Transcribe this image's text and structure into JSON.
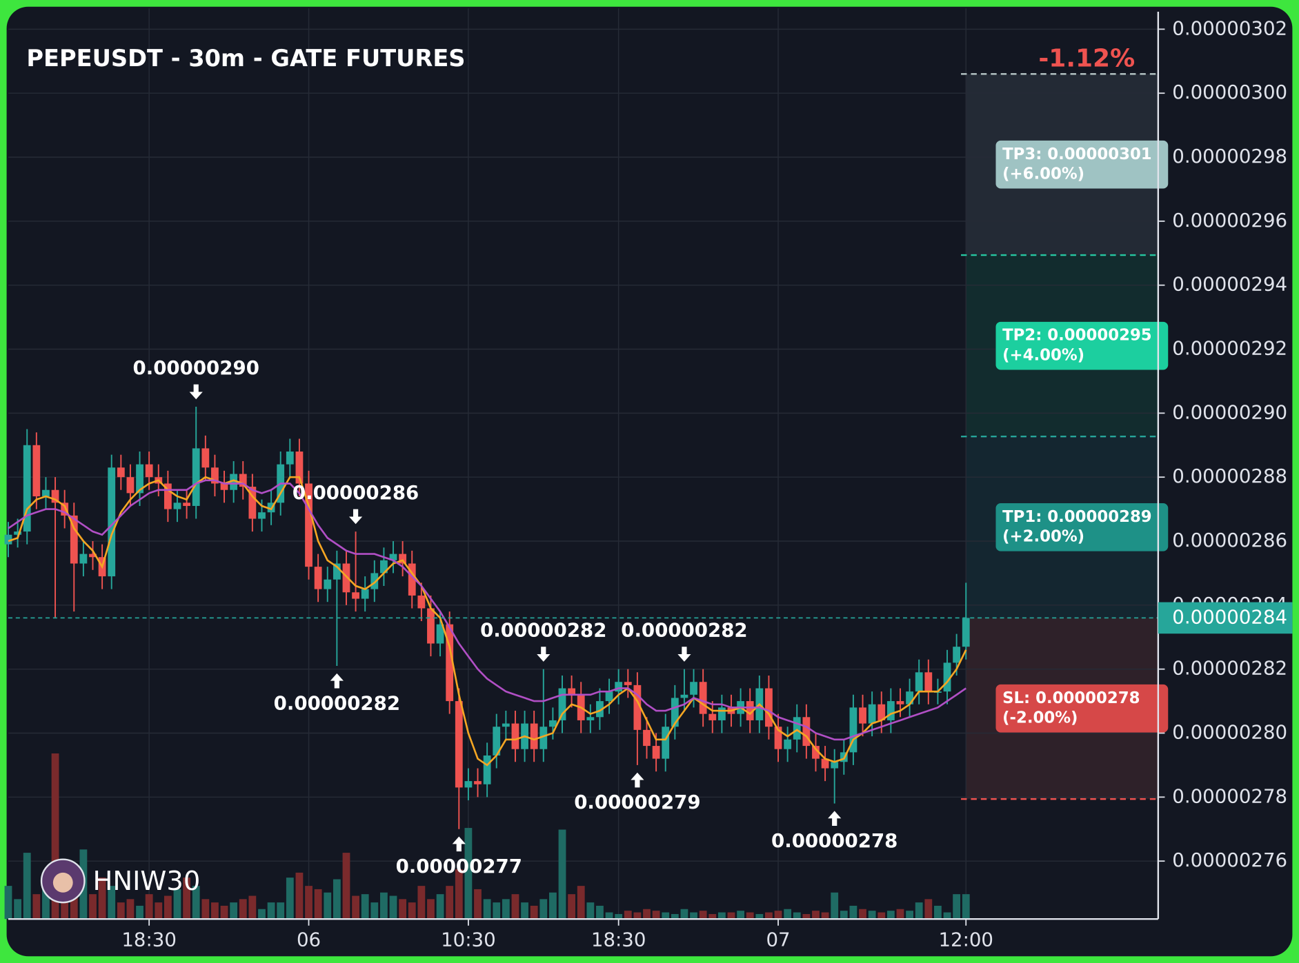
{
  "chart_data": {
    "type": "candlestick",
    "title": "PEPEUSDT - 30m - GATE FUTURES",
    "change": "-1.12%",
    "watermark": "HNIW30",
    "up_color": "#26a69a",
    "down_color": "#ef5350",
    "grid": true,
    "categories": [
      null,
      null,
      null,
      null,
      null,
      null,
      null,
      null,
      null,
      null,
      null,
      null,
      null,
      null,
      null,
      "18:30",
      null,
      null,
      null,
      null,
      null,
      null,
      null,
      null,
      null,
      null,
      null,
      null,
      null,
      null,
      null,
      null,
      "06",
      null,
      null,
      null,
      null,
      null,
      null,
      null,
      null,
      null,
      null,
      null,
      null,
      null,
      null,
      null,
      null,
      "10:30",
      null,
      null,
      null,
      null,
      null,
      null,
      null,
      null,
      null,
      null,
      null,
      null,
      null,
      null,
      null,
      "18:30",
      null,
      null,
      null,
      null,
      null,
      null,
      null,
      null,
      null,
      null,
      null,
      null,
      null,
      null,
      null,
      null,
      "07",
      null,
      null,
      null,
      null,
      null,
      null,
      null,
      null,
      null,
      null,
      null,
      null,
      null,
      null,
      null,
      null,
      null,
      null,
      null,
      "12:00"
    ],
    "open": [
      2.859e-06,
      2.862e-06,
      2.863e-06,
      2.89e-06,
      2.874e-06,
      2.876e-06,
      2.872e-06,
      2.868e-06,
      2.853e-06,
      2.856e-06,
      2.855e-06,
      2.849e-06,
      2.883e-06,
      2.88e-06,
      2.875e-06,
      2.884e-06,
      2.88e-06,
      2.878e-06,
      2.87e-06,
      2.872e-06,
      2.871e-06,
      2.889e-06,
      2.883e-06,
      2.878e-06,
      2.876e-06,
      2.881e-06,
      2.877e-06,
      2.867e-06,
      2.869e-06,
      2.872e-06,
      2.884e-06,
      2.888e-06,
      2.878e-06,
      2.852e-06,
      2.845e-06,
      2.848e-06,
      2.853e-06,
      2.844e-06,
      2.842e-06,
      2.845e-06,
      2.85e-06,
      2.854e-06,
      2.856e-06,
      2.853e-06,
      2.843e-06,
      2.839e-06,
      2.828e-06,
      2.834e-06,
      2.81e-06,
      2.783e-06,
      2.785e-06,
      2.784e-06,
      2.793e-06,
      2.802e-06,
      2.803e-06,
      2.795e-06,
      2.803e-06,
      2.795e-06,
      2.802e-06,
      2.804e-06,
      2.814e-06,
      2.812e-06,
      2.804e-06,
      2.805e-06,
      2.81e-06,
      2.813e-06,
      2.816e-06,
      2.815e-06,
      2.801e-06,
      2.796e-06,
      2.792e-06,
      2.802e-06,
      2.811e-06,
      2.812e-06,
      2.816e-06,
      2.806e-06,
      2.804e-06,
      2.808e-06,
      2.806e-06,
      2.81e-06,
      2.804e-06,
      2.814e-06,
      2.802e-06,
      2.795e-06,
      2.798e-06,
      2.805e-06,
      2.796e-06,
      2.792e-06,
      2.789e-06,
      2.791e-06,
      2.794e-06,
      2.808e-06,
      2.803e-06,
      2.809e-06,
      2.804e-06,
      2.81e-06,
      2.809e-06,
      2.813e-06,
      2.819e-06,
      2.813e-06,
      2.813e-06,
      2.822e-06,
      2.827e-06
    ],
    "high": [
      2.866e-06,
      2.867e-06,
      2.895e-06,
      2.894e-06,
      2.88e-06,
      2.88e-06,
      2.876e-06,
      2.872e-06,
      2.86e-06,
      2.86e-06,
      2.859e-06,
      2.887e-06,
      2.887e-06,
      2.884e-06,
      2.888e-06,
      2.888e-06,
      2.884e-06,
      2.882e-06,
      2.876e-06,
      2.876e-06,
      2.902e-06,
      2.893e-06,
      2.887e-06,
      2.882e-06,
      2.885e-06,
      2.885e-06,
      2.881e-06,
      2.873e-06,
      2.876e-06,
      2.888e-06,
      2.892e-06,
      2.892e-06,
      2.882e-06,
      2.856e-06,
      2.852e-06,
      2.857e-06,
      2.857e-06,
      2.863e-06,
      2.849e-06,
      2.854e-06,
      2.858e-06,
      2.86e-06,
      2.86e-06,
      2.857e-06,
      2.847e-06,
      2.843e-06,
      2.838e-06,
      2.838e-06,
      2.814e-06,
      2.789e-06,
      2.789e-06,
      2.797e-06,
      2.806e-06,
      2.807e-06,
      2.807e-06,
      2.807e-06,
      2.807e-06,
      2.82e-06,
      2.808e-06,
      2.818e-06,
      2.818e-06,
      2.816e-06,
      2.809e-06,
      2.814e-06,
      2.817e-06,
      2.82e-06,
      2.82e-06,
      2.819e-06,
      2.805e-06,
      2.8e-06,
      2.806e-06,
      2.815e-06,
      2.82e-06,
      2.82e-06,
      2.82e-06,
      2.81e-06,
      2.812e-06,
      2.812e-06,
      2.814e-06,
      2.814e-06,
      2.818e-06,
      2.818e-06,
      2.806e-06,
      2.802e-06,
      2.809e-06,
      2.809e-06,
      2.8e-06,
      2.796e-06,
      2.795e-06,
      2.798e-06,
      2.812e-06,
      2.812e-06,
      2.813e-06,
      2.813e-06,
      2.814e-06,
      2.814e-06,
      2.817e-06,
      2.823e-06,
      2.823e-06,
      2.817e-06,
      2.826e-06,
      2.831e-06,
      2.847e-06
    ],
    "low": [
      2.855e-06,
      2.858e-06,
      2.859e-06,
      2.87e-06,
      2.87e-06,
      2.836e-06,
      2.864e-06,
      2.838e-06,
      2.849e-06,
      2.851e-06,
      2.845e-06,
      2.845e-06,
      2.876e-06,
      2.871e-06,
      2.871e-06,
      2.876e-06,
      2.874e-06,
      2.866e-06,
      2.866e-06,
      2.867e-06,
      2.867e-06,
      2.879e-06,
      2.874e-06,
      2.872e-06,
      2.872e-06,
      2.873e-06,
      2.863e-06,
      2.863e-06,
      2.865e-06,
      2.868e-06,
      2.88e-06,
      2.874e-06,
      2.848e-06,
      2.841e-06,
      2.841e-06,
      2.821e-06,
      2.84e-06,
      2.838e-06,
      2.838e-06,
      2.841e-06,
      2.846e-06,
      2.85e-06,
      2.849e-06,
      2.839e-06,
      2.835e-06,
      2.824e-06,
      2.824e-06,
      2.806e-06,
      2.77e-06,
      2.779e-06,
      2.78e-06,
      2.78e-06,
      2.789e-06,
      2.798e-06,
      2.791e-06,
      2.791e-06,
      2.791e-06,
      2.791e-06,
      2.798e-06,
      2.8e-06,
      2.808e-06,
      2.8e-06,
      2.8e-06,
      2.801e-06,
      2.806e-06,
      2.809e-06,
      2.811e-06,
      2.79e-06,
      2.792e-06,
      2.788e-06,
      2.788e-06,
      2.798e-06,
      2.807e-06,
      2.808e-06,
      2.802e-06,
      2.8e-06,
      2.8e-06,
      2.802e-06,
      2.802e-06,
      2.8e-06,
      2.8e-06,
      2.798e-06,
      2.791e-06,
      2.791e-06,
      2.794e-06,
      2.792e-06,
      2.788e-06,
      2.785e-06,
      2.778e-06,
      2.787e-06,
      2.79e-06,
      2.799e-06,
      2.799e-06,
      2.8e-06,
      2.8e-06,
      2.805e-06,
      2.805e-06,
      2.809e-06,
      2.809e-06,
      2.809e-06,
      2.809e-06,
      2.818e-06,
      2.823e-06
    ],
    "close": [
      2.862e-06,
      2.863e-06,
      2.89e-06,
      2.874e-06,
      2.876e-06,
      2.872e-06,
      2.868e-06,
      2.853e-06,
      2.856e-06,
      2.855e-06,
      2.849e-06,
      2.883e-06,
      2.88e-06,
      2.875e-06,
      2.884e-06,
      2.88e-06,
      2.878e-06,
      2.87e-06,
      2.872e-06,
      2.871e-06,
      2.889e-06,
      2.883e-06,
      2.878e-06,
      2.876e-06,
      2.881e-06,
      2.877e-06,
      2.867e-06,
      2.869e-06,
      2.872e-06,
      2.884e-06,
      2.888e-06,
      2.878e-06,
      2.852e-06,
      2.845e-06,
      2.848e-06,
      2.853e-06,
      2.844e-06,
      2.842e-06,
      2.845e-06,
      2.85e-06,
      2.854e-06,
      2.856e-06,
      2.853e-06,
      2.843e-06,
      2.839e-06,
      2.828e-06,
      2.834e-06,
      2.81e-06,
      2.783e-06,
      2.785e-06,
      2.784e-06,
      2.793e-06,
      2.802e-06,
      2.803e-06,
      2.795e-06,
      2.803e-06,
      2.795e-06,
      2.802e-06,
      2.804e-06,
      2.814e-06,
      2.812e-06,
      2.804e-06,
      2.805e-06,
      2.81e-06,
      2.813e-06,
      2.816e-06,
      2.815e-06,
      2.801e-06,
      2.796e-06,
      2.792e-06,
      2.802e-06,
      2.811e-06,
      2.812e-06,
      2.816e-06,
      2.806e-06,
      2.804e-06,
      2.808e-06,
      2.806e-06,
      2.81e-06,
      2.804e-06,
      2.814e-06,
      2.802e-06,
      2.795e-06,
      2.798e-06,
      2.805e-06,
      2.796e-06,
      2.792e-06,
      2.789e-06,
      2.791e-06,
      2.794e-06,
      2.808e-06,
      2.803e-06,
      2.809e-06,
      2.804e-06,
      2.81e-06,
      2.809e-06,
      2.813e-06,
      2.819e-06,
      2.813e-06,
      2.813e-06,
      2.822e-06,
      2.827e-06,
      2.836e-06
    ],
    "high_labels": [
      null,
      null,
      null,
      null,
      null,
      null,
      null,
      null,
      null,
      null,
      null,
      null,
      null,
      null,
      null,
      null,
      null,
      null,
      null,
      null,
      "0.00000290",
      null,
      null,
      null,
      null,
      null,
      null,
      null,
      null,
      null,
      null,
      null,
      null,
      null,
      null,
      null,
      null,
      "0.00000286",
      null,
      null,
      null,
      null,
      null,
      null,
      null,
      null,
      null,
      null,
      null,
      null,
      null,
      null,
      null,
      null,
      null,
      null,
      null,
      "0.00000282",
      null,
      null,
      null,
      null,
      null,
      null,
      null,
      null,
      null,
      null,
      null,
      null,
      null,
      null,
      "0.00000282",
      null,
      null,
      null,
      null,
      null,
      null,
      null,
      null,
      null,
      null,
      null,
      null,
      null,
      null,
      null,
      null,
      null,
      null,
      null,
      null,
      null,
      null,
      null,
      null,
      null,
      null,
      null,
      null,
      null,
      null
    ],
    "low_labels": [
      null,
      null,
      null,
      null,
      null,
      null,
      null,
      null,
      null,
      null,
      null,
      null,
      null,
      null,
      null,
      null,
      null,
      null,
      null,
      null,
      null,
      null,
      null,
      null,
      null,
      null,
      null,
      null,
      null,
      null,
      null,
      null,
      null,
      null,
      null,
      "0.00000282",
      null,
      null,
      null,
      null,
      null,
      null,
      null,
      null,
      null,
      null,
      null,
      null,
      "0.00000277",
      null,
      null,
      null,
      null,
      null,
      null,
      null,
      null,
      null,
      null,
      null,
      null,
      null,
      null,
      null,
      null,
      null,
      null,
      "0.00000279",
      null,
      null,
      null,
      null,
      null,
      null,
      null,
      null,
      null,
      null,
      null,
      null,
      null,
      null,
      null,
      null,
      null,
      null,
      null,
      null,
      "0.00000278",
      null,
      null,
      null,
      null,
      null,
      null,
      null,
      null,
      null,
      null,
      null,
      null,
      null,
      null
    ],
    "volume": [
      20,
      12,
      40,
      15,
      20,
      100,
      12,
      20,
      42,
      15,
      25,
      20,
      10,
      12,
      8,
      15,
      10,
      14,
      18,
      25,
      20,
      12,
      10,
      8,
      10,
      12,
      14,
      6,
      10,
      10,
      25,
      28,
      20,
      18,
      16,
      24,
      40,
      14,
      15,
      10,
      16,
      14,
      12,
      10,
      20,
      12,
      15,
      20,
      30,
      55,
      18,
      12,
      10,
      12,
      15,
      10,
      8,
      12,
      16,
      54,
      15,
      20,
      10,
      8,
      4,
      3,
      5,
      4,
      6,
      5,
      4,
      3,
      6,
      4,
      5,
      3,
      4,
      4,
      5,
      4,
      3,
      4,
      5,
      6,
      4,
      3,
      5,
      4,
      16,
      5,
      8,
      6,
      5,
      4,
      5,
      6,
      5,
      10,
      12,
      8,
      4,
      15,
      15
    ],
    "volume_lim": [
      0,
      110
    ],
    "ma": [
      {
        "color": "#f5a623",
        "values": [
          2.86e-06,
          2.861e-06,
          2.87e-06,
          2.873e-06,
          2.874e-06,
          2.873e-06,
          2.871e-06,
          2.864e-06,
          2.86e-06,
          2.857e-06,
          2.852e-06,
          2.862e-06,
          2.869e-06,
          2.873e-06,
          2.876e-06,
          2.878e-06,
          2.879e-06,
          2.876e-06,
          2.874e-06,
          2.873e-06,
          2.878e-06,
          2.88e-06,
          2.879e-06,
          2.878e-06,
          2.879e-06,
          2.878e-06,
          2.874e-06,
          2.871e-06,
          2.87e-06,
          2.875e-06,
          2.88e-06,
          2.88e-06,
          2.871e-06,
          2.86e-06,
          2.854e-06,
          2.852e-06,
          2.849e-06,
          2.846e-06,
          2.845e-06,
          2.847e-06,
          2.85e-06,
          2.853e-06,
          2.854e-06,
          2.85e-06,
          2.846e-06,
          2.839e-06,
          2.836e-06,
          2.827e-06,
          2.812e-06,
          2.8e-06,
          2.792e-06,
          2.79e-06,
          2.793e-06,
          2.798e-06,
          2.798e-06,
          2.799e-06,
          2.798e-06,
          2.799e-06,
          2.8e-06,
          2.806e-06,
          2.809e-06,
          2.808e-06,
          2.806e-06,
          2.807e-06,
          2.809e-06,
          2.812e-06,
          2.814e-06,
          2.81e-06,
          2.804e-06,
          2.798e-06,
          2.798e-06,
          2.803e-06,
          2.807e-06,
          2.811e-06,
          2.809e-06,
          2.807e-06,
          2.807e-06,
          2.807e-06,
          2.808e-06,
          2.806e-06,
          2.809e-06,
          2.806e-06,
          2.801e-06,
          2.799e-06,
          2.801e-06,
          2.799e-06,
          2.795e-06,
          2.792e-06,
          2.791e-06,
          2.792e-06,
          2.798e-06,
          2.8e-06,
          2.803e-06,
          2.804e-06,
          2.806e-06,
          2.807e-06,
          2.809e-06,
          2.813e-06,
          2.813e-06,
          2.813e-06,
          2.816e-06,
          2.82e-06,
          2.826e-06
        ]
      },
      {
        "color": "#b14fc5",
        "values": [
          2.864e-06,
          2.866e-06,
          2.868e-06,
          2.869e-06,
          2.87e-06,
          2.87e-06,
          2.869e-06,
          2.867e-06,
          2.865e-06,
          2.863e-06,
          2.862e-06,
          2.865e-06,
          2.868e-06,
          2.871e-06,
          2.873e-06,
          2.875e-06,
          2.876e-06,
          2.876e-06,
          2.876e-06,
          2.876e-06,
          2.878e-06,
          2.879e-06,
          2.879e-06,
          2.878e-06,
          2.878e-06,
          2.878e-06,
          2.876e-06,
          2.875e-06,
          2.876e-06,
          2.878e-06,
          2.878e-06,
          2.875e-06,
          2.87e-06,
          2.865e-06,
          2.861e-06,
          2.859e-06,
          2.857e-06,
          2.856e-06,
          2.856e-06,
          2.856e-06,
          2.855e-06,
          2.854e-06,
          2.852e-06,
          2.849e-06,
          2.846e-06,
          2.842e-06,
          2.838e-06,
          2.833e-06,
          2.828e-06,
          2.824e-06,
          2.82e-06,
          2.817e-06,
          2.815e-06,
          2.813e-06,
          2.812e-06,
          2.811e-06,
          2.81e-06,
          2.81e-06,
          2.811e-06,
          2.812e-06,
          2.812e-06,
          2.812e-06,
          2.812e-06,
          2.813e-06,
          2.813e-06,
          2.814e-06,
          2.814e-06,
          2.812e-06,
          2.809e-06,
          2.807e-06,
          2.807e-06,
          2.808e-06,
          2.809e-06,
          2.811e-06,
          2.81e-06,
          2.809e-06,
          2.809e-06,
          2.808e-06,
          2.808e-06,
          2.808e-06,
          2.808e-06,
          2.807e-06,
          2.805e-06,
          2.804e-06,
          2.803e-06,
          2.802e-06,
          2.8e-06,
          2.799e-06,
          2.798e-06,
          2.798e-06,
          2.799e-06,
          2.8e-06,
          2.801e-06,
          2.802e-06,
          2.803e-06,
          2.804e-06,
          2.805e-06,
          2.806e-06,
          2.807e-06,
          2.808e-06,
          2.81e-06,
          2.812e-06,
          2.814e-06
        ]
      }
    ],
    "ylim": [
      2.7419e-06,
      3.0265e-06
    ],
    "yticks": [
      {
        "value": 3.02e-06,
        "label": "0.00000302"
      },
      {
        "value": 3e-06,
        "label": "0.00000300"
      },
      {
        "value": 2.98e-06,
        "label": "0.00000298"
      },
      {
        "value": 2.96e-06,
        "label": "0.00000296"
      },
      {
        "value": 2.94e-06,
        "label": "0.00000294"
      },
      {
        "value": 2.92e-06,
        "label": "0.00000292"
      },
      {
        "value": 2.9e-06,
        "label": "0.00000290"
      },
      {
        "value": 2.88e-06,
        "label": "0.00000288"
      },
      {
        "value": 2.86e-06,
        "label": "0.00000286"
      },
      {
        "value": 2.84e-06,
        "label": "0.00000284"
      },
      {
        "value": 2.82e-06,
        "label": "0.00000282"
      },
      {
        "value": 2.8e-06,
        "label": "0.00000280"
      },
      {
        "value": 2.78e-06,
        "label": "0.00000278"
      },
      {
        "value": 2.76e-06,
        "label": "0.00000276"
      }
    ],
    "entry": {
      "value": 2.836e-06,
      "label": "0.00000284",
      "color": "#26a69a"
    },
    "targets": [
      {
        "value": 2.8927e-06,
        "label": "TP1: 0.00000289",
        "note": "(+2.00%)",
        "color": "#1e9187",
        "line_color": "#26a69a",
        "zone_color": "#142630"
      },
      {
        "value": 2.9494e-06,
        "label": "TP2: 0.00000295",
        "note": "(+4.00%)",
        "color": "#1ccf9f",
        "line_color": "#26c6a0",
        "zone_color": "#122c2e"
      },
      {
        "value": 3.006e-06,
        "label": "TP3: 0.00000301",
        "note": "(+6.00%)",
        "color": "#9fc3c3",
        "line_color": "#b8c8c8",
        "zone_color": "#232a35"
      }
    ],
    "stop": {
      "value": 2.7794e-06,
      "label": "SL: 0.00000278",
      "note": "(-2.00%)",
      "color": "#d64848",
      "line_color": "#ef5350",
      "zone_color": "#2e2129"
    }
  }
}
